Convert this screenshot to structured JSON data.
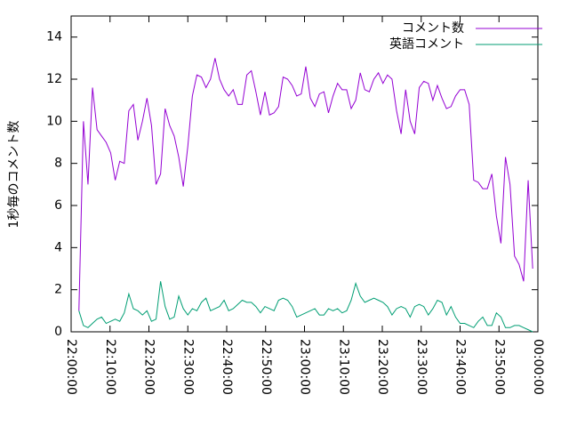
{
  "chart_data": {
    "type": "line",
    "y_label": "1秒毎のコメント数",
    "x": [
      "22:02:00",
      "22:03:10",
      "22:04:20",
      "22:05:30",
      "22:06:40",
      "22:07:50",
      "22:09:00",
      "22:10:10",
      "22:11:20",
      "22:12:30",
      "22:13:40",
      "22:14:50",
      "22:16:00",
      "22:17:10",
      "22:18:20",
      "22:19:30",
      "22:20:40",
      "22:21:50",
      "22:23:00",
      "22:24:10",
      "22:25:20",
      "22:26:30",
      "22:27:40",
      "22:28:50",
      "22:30:00",
      "22:31:10",
      "22:32:20",
      "22:33:30",
      "22:34:40",
      "22:35:50",
      "22:37:00",
      "22:38:10",
      "22:39:20",
      "22:40:30",
      "22:41:40",
      "22:42:50",
      "22:44:00",
      "22:45:10",
      "22:46:20",
      "22:47:30",
      "22:48:40",
      "22:49:50",
      "22:51:00",
      "22:52:10",
      "22:53:20",
      "22:54:30",
      "22:55:40",
      "22:56:50",
      "22:58:00",
      "22:59:10",
      "23:00:20",
      "23:01:30",
      "23:02:40",
      "23:03:50",
      "23:05:00",
      "23:06:10",
      "23:07:20",
      "23:08:30",
      "23:09:40",
      "23:10:50",
      "23:12:00",
      "23:13:10",
      "23:14:20",
      "23:15:30",
      "23:16:40",
      "23:17:50",
      "23:19:00",
      "23:20:10",
      "23:21:20",
      "23:22:30",
      "23:23:40",
      "23:24:50",
      "23:26:00",
      "23:27:10",
      "23:28:20",
      "23:29:30",
      "23:30:40",
      "23:31:50",
      "23:33:00",
      "23:34:10",
      "23:35:20",
      "23:36:30",
      "23:37:40",
      "23:38:50",
      "23:40:00",
      "23:41:10",
      "23:42:20",
      "23:43:30",
      "23:44:40",
      "23:45:50",
      "23:47:00",
      "23:48:10",
      "23:49:20",
      "23:50:30",
      "23:51:40",
      "23:52:50",
      "23:54:00",
      "23:55:10",
      "23:56:20",
      "23:57:30",
      "23:58:40"
    ],
    "series": [
      {
        "name": "コメント数",
        "color": "#9400d3",
        "values": [
          1.0,
          10.0,
          7.0,
          11.6,
          9.6,
          9.3,
          9.0,
          8.5,
          7.2,
          8.1,
          8.0,
          10.5,
          10.8,
          9.1,
          10.0,
          11.1,
          9.8,
          7.0,
          7.5,
          10.6,
          9.8,
          9.3,
          8.3,
          6.9,
          8.8,
          11.2,
          12.2,
          12.1,
          11.6,
          12.0,
          13.0,
          12.0,
          11.5,
          11.2,
          11.5,
          10.8,
          10.8,
          12.2,
          12.4,
          11.4,
          10.3,
          11.4,
          10.3,
          10.4,
          10.7,
          12.1,
          12.0,
          11.7,
          11.2,
          11.3,
          12.6,
          11.1,
          10.7,
          11.3,
          11.4,
          10.4,
          11.2,
          11.8,
          11.5,
          11.5,
          10.6,
          11.0,
          12.3,
          11.5,
          11.4,
          12.0,
          12.3,
          11.8,
          12.2,
          12.0,
          10.5,
          9.4,
          11.5,
          10.0,
          9.4,
          11.6,
          11.9,
          11.8,
          11.0,
          11.7,
          11.1,
          10.6,
          10.7,
          11.2,
          11.5,
          11.5,
          10.8,
          7.2,
          7.1,
          6.8,
          6.8,
          7.5,
          5.5,
          4.2,
          8.3,
          7.0,
          3.6,
          3.2,
          2.4,
          7.2,
          3.0
        ]
      },
      {
        "name": "英語コメント",
        "color": "#009e73",
        "values": [
          1.0,
          0.3,
          0.2,
          0.4,
          0.6,
          0.7,
          0.4,
          0.5,
          0.6,
          0.5,
          0.9,
          1.8,
          1.1,
          1.0,
          0.8,
          1.0,
          0.5,
          0.6,
          2.4,
          1.2,
          0.6,
          0.7,
          1.7,
          1.1,
          0.8,
          1.1,
          1.0,
          1.4,
          1.6,
          1.0,
          1.1,
          1.2,
          1.5,
          1.0,
          1.1,
          1.3,
          1.5,
          1.4,
          1.4,
          1.2,
          0.9,
          1.2,
          1.1,
          1.0,
          1.5,
          1.6,
          1.5,
          1.2,
          0.7,
          0.8,
          0.9,
          1.0,
          1.1,
          0.8,
          0.8,
          1.1,
          1.0,
          1.1,
          0.9,
          1.0,
          1.5,
          2.3,
          1.7,
          1.4,
          1.5,
          1.6,
          1.5,
          1.4,
          1.2,
          0.8,
          1.1,
          1.2,
          1.1,
          0.7,
          1.2,
          1.3,
          1.2,
          0.8,
          1.1,
          1.5,
          1.4,
          0.8,
          1.2,
          0.7,
          0.4,
          0.4,
          0.3,
          0.2,
          0.5,
          0.7,
          0.3,
          0.3,
          0.9,
          0.7,
          0.2,
          0.2,
          0.3,
          0.3,
          0.2,
          0.1,
          0.0
        ]
      }
    ],
    "xlim": [
      "22:00:00",
      "00:00:00"
    ],
    "xticks": [
      "22:00:00",
      "22:10:00",
      "22:20:00",
      "22:30:00",
      "22:40:00",
      "22:50:00",
      "23:00:00",
      "23:10:00",
      "23:20:00",
      "23:30:00",
      "23:40:00",
      "23:50:00",
      "00:00:00"
    ],
    "ylim": [
      0,
      15
    ],
    "yticks": [
      0,
      2,
      4,
      6,
      8,
      10,
      12,
      14
    ],
    "legend": "top-right",
    "grid": false
  }
}
